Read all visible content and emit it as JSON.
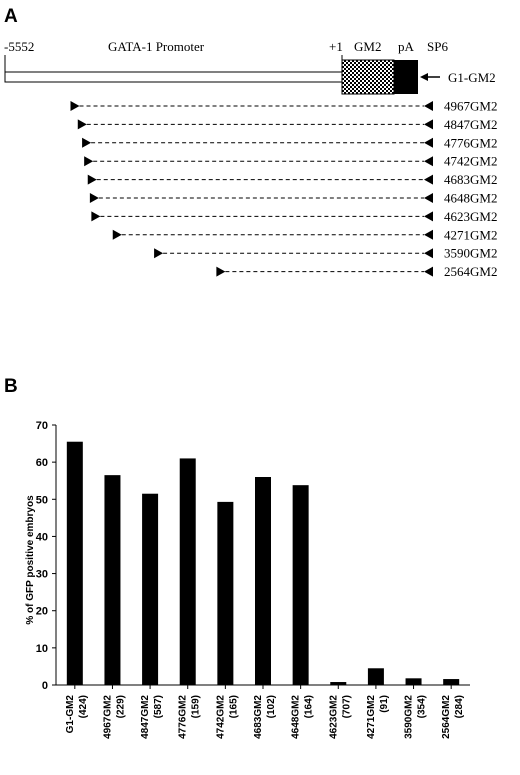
{
  "panel_a": {
    "label": "A",
    "promoter_label": "GATA-1 Promoter",
    "start_label": "-5552",
    "plus_one_label": "+1",
    "gm2_label": "GM2",
    "pa_label": "pA",
    "sp6_label": "SP6",
    "construct_label": "G1-GM2",
    "deletions": [
      {
        "name": "4967GM2",
        "start": 4967
      },
      {
        "name": "4847GM2",
        "start": 4847
      },
      {
        "name": "4776GM2",
        "start": 4776
      },
      {
        "name": "4742GM2",
        "start": 4742
      },
      {
        "name": "4683GM2",
        "start": 4683
      },
      {
        "name": "4648GM2",
        "start": 4648
      },
      {
        "name": "4623GM2",
        "start": 4623
      },
      {
        "name": "4271GM2",
        "start": 4271
      },
      {
        "name": "3590GM2",
        "start": 3590
      },
      {
        "name": "2564GM2",
        "start": 2564
      }
    ]
  },
  "panel_b": {
    "label": "B"
  },
  "chart_data": {
    "type": "bar",
    "ylabel": "% of GFP positive embryos",
    "ylim": [
      0,
      70
    ],
    "yticks": [
      0,
      10,
      20,
      30,
      40,
      50,
      60,
      70
    ],
    "categories": [
      {
        "name": "G1-GM2",
        "n": "(424)",
        "value": 65.5
      },
      {
        "name": "4967GM2",
        "n": "(229)",
        "value": 56.5
      },
      {
        "name": "4847GM2",
        "n": "(587)",
        "value": 51.5
      },
      {
        "name": "4776GM2",
        "n": "(159)",
        "value": 61
      },
      {
        "name": "4742GM2",
        "n": "(165)",
        "value": 49.3
      },
      {
        "name": "4683GM2",
        "n": "(102)",
        "value": 56
      },
      {
        "name": "4648GM2",
        "n": "(164)",
        "value": 53.8
      },
      {
        "name": "4623GM2",
        "n": "(707)",
        "value": 0.8
      },
      {
        "name": "4271GM2",
        "n": "(91)",
        "value": 4.5
      },
      {
        "name": "3590GM2",
        "n": "(354)",
        "value": 1.8
      },
      {
        "name": "2564GM2",
        "n": "(284)",
        "value": 1.6
      }
    ],
    "bar_color": "#000000"
  }
}
